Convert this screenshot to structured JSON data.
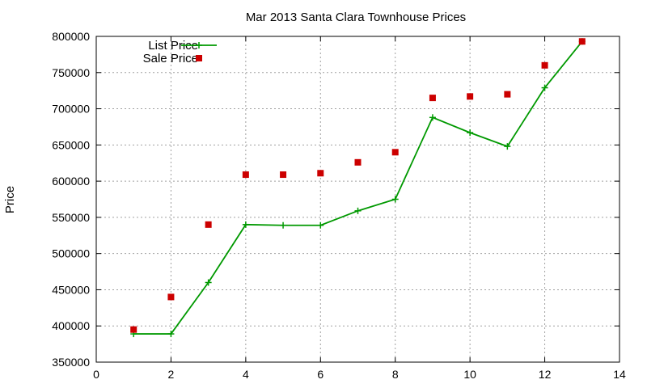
{
  "chart_data": {
    "type": "line",
    "title": "Mar 2013 Santa Clara Townhouse Prices",
    "xlabel": "",
    "ylabel": "Price",
    "xlim": [
      0,
      14
    ],
    "ylim": [
      350000,
      800000
    ],
    "x_ticks": [
      0,
      2,
      4,
      6,
      8,
      10,
      12,
      14
    ],
    "y_ticks": [
      350000,
      400000,
      450000,
      500000,
      550000,
      600000,
      650000,
      700000,
      750000,
      800000
    ],
    "grid": true,
    "legend_position": "top-left",
    "series": [
      {
        "name": "List Price",
        "style": "line-with-plus-markers",
        "color": "#009900",
        "x": [
          1,
          2,
          3,
          4,
          5,
          6,
          7,
          8,
          9,
          10,
          11,
          12,
          13
        ],
        "values": [
          389000,
          389000,
          460000,
          540000,
          539000,
          539000,
          559000,
          575000,
          688000,
          667000,
          648000,
          729000,
          793000
        ]
      },
      {
        "name": "Sale Price",
        "style": "square-points",
        "color": "#cc0000",
        "x": [
          1,
          2,
          3,
          4,
          5,
          6,
          7,
          8,
          9,
          10,
          11,
          12,
          13
        ],
        "values": [
          395000,
          440000,
          540000,
          609000,
          609000,
          611000,
          626000,
          640000,
          715000,
          717000,
          720000,
          760000,
          793000
        ]
      }
    ]
  }
}
